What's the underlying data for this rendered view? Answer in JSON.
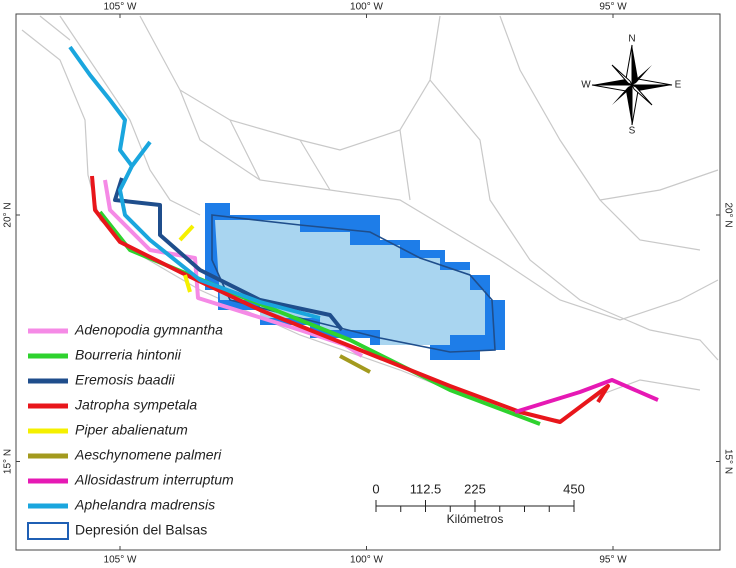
{
  "map": {
    "graticule": {
      "longitudes": [
        {
          "value": -105,
          "label": "105° W"
        },
        {
          "value": -100,
          "label": "100° W"
        },
        {
          "value": -95,
          "label": "95° W"
        }
      ],
      "latitudes": [
        {
          "value": 20,
          "label": "20° N"
        },
        {
          "value": 15,
          "label": "15° N"
        }
      ]
    },
    "compass": {
      "north": "N",
      "south": "S",
      "east": "E",
      "west": "W"
    },
    "legend": {
      "entries": [
        {
          "name": "Adenopodia gymnantha",
          "color": "#f58ae6"
        },
        {
          "name": "Bourreria hintonii",
          "color": "#2ed22e"
        },
        {
          "name": "Eremosis baadii",
          "color": "#1f4e8c"
        },
        {
          "name": "Jatropha sympetala",
          "color": "#e8161b"
        },
        {
          "name": "Piper abalienatum",
          "color": "#f5f000"
        },
        {
          "name": "Aeschynomene palmeri",
          "color": "#a39a1e"
        },
        {
          "name": "Allosidastrum interruptum",
          "color": "#e619b4"
        },
        {
          "name": "Aphelandra madrensis",
          "color": "#1aa6de"
        }
      ],
      "region": {
        "name": "Depresión del Balsas",
        "color": "#1f5fb4"
      }
    },
    "scale": {
      "ticks": [
        0,
        112.5,
        225,
        450
      ],
      "unit": "Kilómetros"
    }
  }
}
